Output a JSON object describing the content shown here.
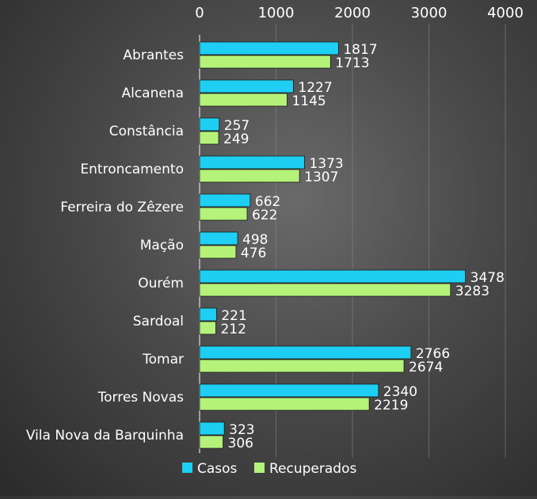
{
  "chart_data": {
    "type": "bar",
    "orientation": "horizontal",
    "categories": [
      "Abrantes",
      "Alcanena",
      "Constância",
      "Entroncamento",
      "Ferreira do Zêzere",
      "Mação",
      "Ourém",
      "Sardoal",
      "Tomar",
      "Torres Novas",
      "Vila Nova da Barquinha"
    ],
    "series": [
      {
        "name": "Casos",
        "color": "#1ecff3",
        "values": [
          1817,
          1227,
          257,
          1373,
          662,
          498,
          3478,
          221,
          2766,
          2340,
          323
        ]
      },
      {
        "name": "Recuperados",
        "color": "#b5f27a",
        "values": [
          1713,
          1145,
          249,
          1307,
          622,
          476,
          3283,
          212,
          2674,
          2219,
          306
        ]
      }
    ],
    "xlim": [
      0,
      4000
    ],
    "xticks": [
      "0",
      "1000",
      "2000",
      "3000",
      "4000"
    ],
    "axis_position": "top",
    "grid": true,
    "legend_position": "bottom",
    "title": "",
    "xlabel": "",
    "ylabel": ""
  }
}
